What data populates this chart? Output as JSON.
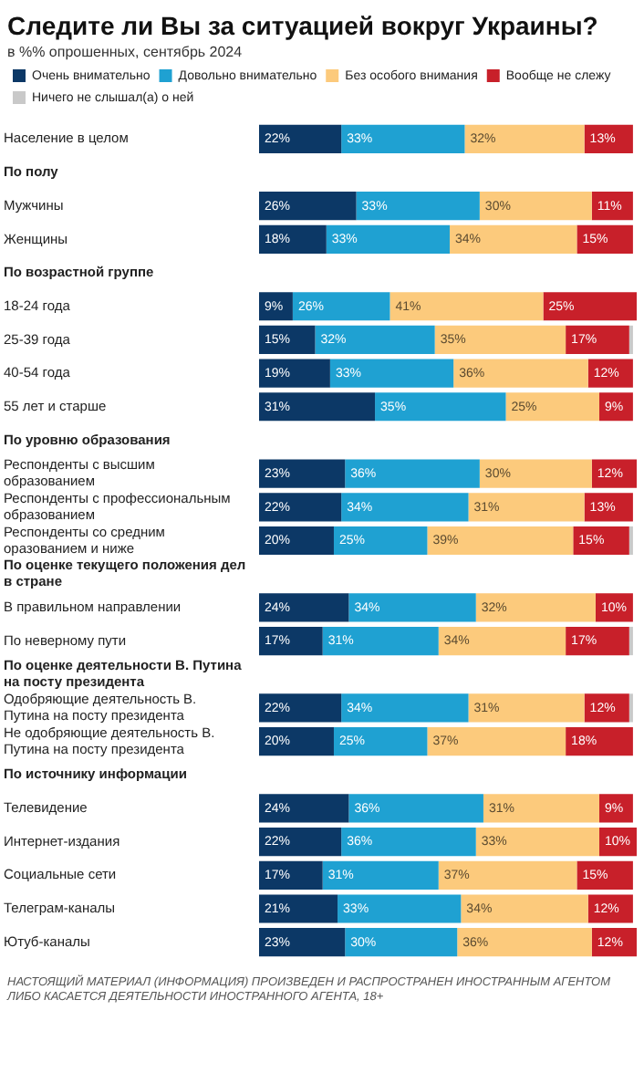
{
  "chart_data": {
    "type": "bar",
    "orientation": "horizontal",
    "stacked": true,
    "title": "Следите ли Вы за ситуацией вокруг Украины?",
    "subtitle": "в %% опрошенных, сентябрь 2024",
    "legend": "top left",
    "tick_labels": "y",
    "grid": false,
    "categories": [
      "Население в целом",
      "По полу",
      "Мужчины",
      "Женщины",
      "По возрастной группе",
      "18-24 года",
      "25-39 года",
      "40-54 года",
      "55 лет и старше",
      "По уровню образования",
      "Респонденты с высшим образованием",
      "Респонденты с профессиональным образованием",
      "Респонденты со средним оразованием и ниже",
      "По оценке текущего положения дел в стране",
      "В правильном направлении",
      "По неверному пути",
      "По оценке деятельности В. Путина на посту президента",
      "Одобряющие деятельность В. Путина на посту президента",
      "Не одобряющие деятельность В. Путина на посту президента",
      "По источнику информации",
      "Телевидение",
      "Интернет-издания",
      "Социальные сети",
      "Телеграм-каналы",
      "Ютуб-каналы"
    ],
    "series": [
      {
        "name": "Очень внимательно",
        "color": "#0c3866",
        "values": [
          22,
          null,
          26,
          18,
          null,
          9,
          15,
          19,
          31,
          null,
          23,
          22,
          20,
          null,
          24,
          17,
          null,
          22,
          20,
          null,
          24,
          22,
          17,
          21,
          23
        ],
        "value_labels": [
          "22%",
          null,
          "26%",
          "18%",
          null,
          "9%",
          "15%",
          "19%",
          "31%",
          null,
          "23%",
          "22%",
          "20%",
          null,
          "24%",
          "17%",
          null,
          "22%",
          "20%",
          null,
          "24%",
          "22%",
          "17%",
          "21%",
          "23%"
        ]
      },
      {
        "name": "Довольно внимательно",
        "color": "#1fa1d2",
        "values": [
          33,
          null,
          33,
          33,
          null,
          26,
          32,
          33,
          35,
          null,
          36,
          34,
          25,
          null,
          34,
          31,
          null,
          34,
          25,
          null,
          36,
          36,
          31,
          33,
          30
        ],
        "value_labels": [
          "33%",
          null,
          "33%",
          "33%",
          null,
          "26%",
          "32%",
          "33%",
          "35%",
          null,
          "36%",
          "34%",
          "25%",
          null,
          "34%",
          "31%",
          null,
          "34%",
          "25%",
          null,
          "36%",
          "36%",
          "31%",
          "33%",
          "30%"
        ]
      },
      {
        "name": "Без особого внимания",
        "color": "#fcca7c",
        "values": [
          32,
          null,
          30,
          34,
          null,
          41,
          35,
          36,
          25,
          null,
          30,
          31,
          39,
          null,
          32,
          34,
          null,
          31,
          37,
          null,
          31,
          33,
          37,
          34,
          36
        ],
        "value_labels": [
          "32%",
          null,
          "30%",
          "34%",
          null,
          "41%",
          "35%",
          "36%",
          "25%",
          null,
          "30%",
          "31%",
          "39%",
          null,
          "32%",
          "34%",
          null,
          "31%",
          "37%",
          null,
          "31%",
          "33%",
          "37%",
          "34%",
          "36%"
        ]
      },
      {
        "name": "Вообще не слежу",
        "color": "#c8202a",
        "values": [
          13,
          null,
          11,
          15,
          null,
          25,
          17,
          12,
          9,
          null,
          12,
          13,
          15,
          null,
          10,
          17,
          null,
          12,
          18,
          null,
          9,
          10,
          15,
          12,
          12
        ],
        "value_labels": [
          "13%",
          null,
          "11%",
          "15%",
          null,
          "25%",
          "17%",
          "12%",
          "9%",
          null,
          "12%",
          "13%",
          "15%",
          null,
          "10%",
          "17%",
          null,
          "12%",
          "18%",
          null,
          "9%",
          "10%",
          "15%",
          "12%",
          "12%"
        ]
      },
      {
        "name": "Ничего не слышал(а) о ней",
        "color": "#c9c9c9",
        "values": [
          0,
          null,
          0,
          0,
          null,
          0,
          1,
          0,
          0,
          null,
          0,
          0,
          1,
          null,
          0,
          1,
          null,
          1,
          0,
          null,
          0,
          0,
          0,
          0,
          0
        ]
      }
    ],
    "annotations": [
      "НАСТОЯЩИЙ МАТЕРИАЛ (ИНФОРМАЦИЯ) ПРОИЗВЕДЕН И РАСПРОСТРАНЕН ИНОСТРАННЫМ АГЕНТОМ ЛИБО КАСАЕТСЯ ДЕЯТЕЛЬНОСТИ ИНОСТРАННОГО АГЕНТА, 18+"
    ]
  }
}
